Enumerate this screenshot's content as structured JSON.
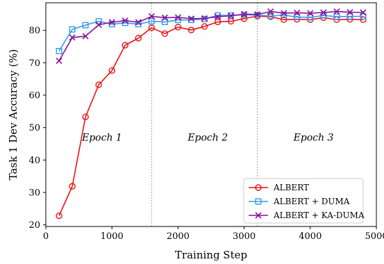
{
  "chart_data": {
    "type": "line",
    "xlabel": "Training Step",
    "ylabel": "Task 1 Dev Accuracy (%)",
    "xlim": [
      0,
      5000
    ],
    "ylim": [
      19.5,
      88.5
    ],
    "xticks": [
      0,
      1000,
      2000,
      3000,
      4000,
      5000
    ],
    "yticks": [
      20,
      30,
      40,
      50,
      60,
      70,
      80
    ],
    "grid": false,
    "legend_position": "lower-right",
    "vlines": [
      1600,
      3200
    ],
    "annotations": [
      {
        "text": "Epoch 1",
        "x": 850,
        "y": 46
      },
      {
        "text": "Epoch 2",
        "x": 2450,
        "y": 46
      },
      {
        "text": "Epoch 3",
        "x": 4050,
        "y": 46
      }
    ],
    "x": [
      200,
      400,
      600,
      800,
      1000,
      1200,
      1400,
      1600,
      1800,
      2000,
      2200,
      2400,
      2600,
      2800,
      3000,
      3200,
      3400,
      3600,
      3800,
      4000,
      4200,
      4400,
      4600,
      4800
    ],
    "series": [
      {
        "name": "ALBERT",
        "color": "#ee1111",
        "marker": "circle",
        "values": [
          22.8,
          31.9,
          53.3,
          63.2,
          67.6,
          75.4,
          77.6,
          80.8,
          79.0,
          81.0,
          80.1,
          81.2,
          82.6,
          82.8,
          83.6,
          84.4,
          84.2,
          83.3,
          83.4,
          83.3,
          83.9,
          83.3,
          83.4,
          83.3
        ]
      },
      {
        "name": "ALBERT + DUMA",
        "color": "#3399ee",
        "marker": "square",
        "values": [
          73.6,
          80.3,
          81.6,
          82.8,
          81.9,
          82.3,
          81.9,
          82.8,
          82.6,
          83.2,
          83.2,
          83.5,
          84.6,
          84.6,
          84.8,
          84.7,
          84.4,
          84.7,
          84.1,
          84.0,
          84.6,
          84.2,
          84.3,
          84.3
        ]
      },
      {
        "name": "ALBERT + KA-DUMA",
        "color": "#881199",
        "marker": "x",
        "values": [
          70.6,
          77.8,
          78.2,
          81.7,
          82.5,
          83.0,
          82.5,
          84.3,
          83.9,
          84.0,
          83.6,
          83.7,
          84.2,
          84.5,
          85.0,
          84.9,
          85.8,
          85.3,
          85.4,
          85.3,
          85.5,
          85.8,
          85.6,
          85.5
        ]
      }
    ]
  }
}
